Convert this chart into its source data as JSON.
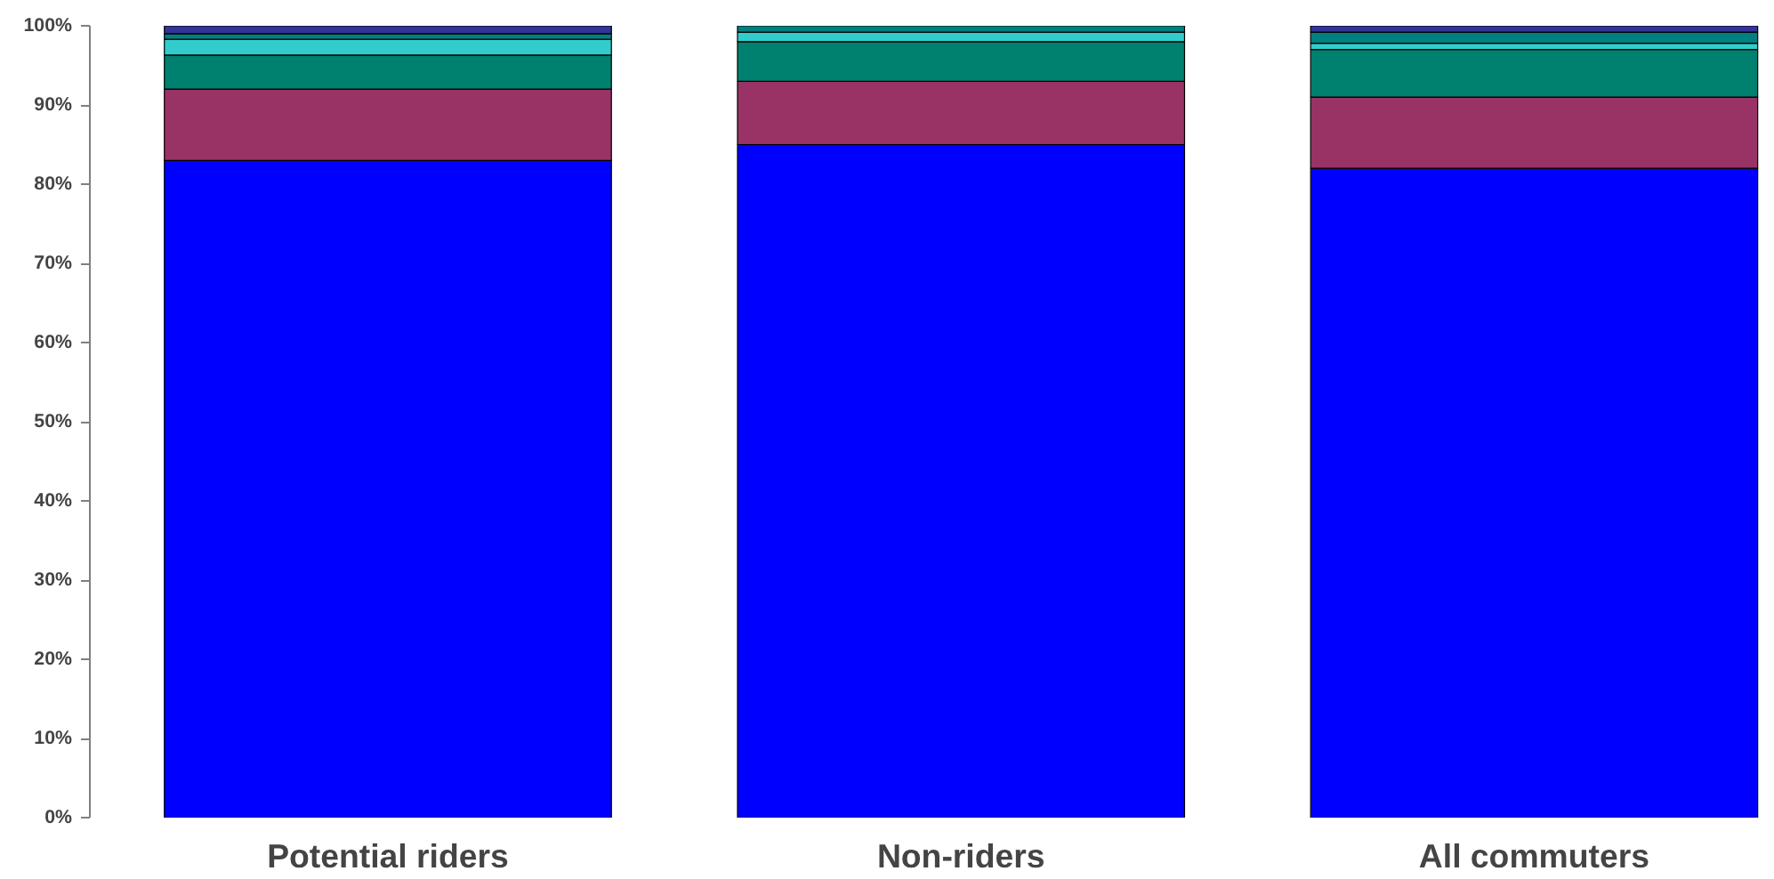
{
  "chart_data": {
    "type": "bar",
    "stacked": true,
    "categories": [
      "Potential riders",
      "Non-riders",
      "All commuters"
    ],
    "series": [
      {
        "color": "#0000ff",
        "values": [
          83,
          85,
          82
        ]
      },
      {
        "color": "#993366",
        "values": [
          9,
          8,
          9
        ]
      },
      {
        "color": "#00806e",
        "values": [
          4.3,
          5,
          6
        ]
      },
      {
        "color": "#33cccc",
        "values": [
          2,
          1.2,
          0.8
        ]
      },
      {
        "color": "#008080",
        "values": [
          0.7,
          0.8,
          1.4
        ]
      },
      {
        "color": "#333399",
        "values": [
          1,
          0,
          0.8
        ]
      }
    ],
    "ylim": [
      0,
      100
    ],
    "yticks": [
      {
        "value": 0,
        "label": "0%"
      },
      {
        "value": 10,
        "label": "10%"
      },
      {
        "value": 20,
        "label": "20%"
      },
      {
        "value": 30,
        "label": "30%"
      },
      {
        "value": 40,
        "label": "40%"
      },
      {
        "value": 50,
        "label": "50%"
      },
      {
        "value": 60,
        "label": "60%"
      },
      {
        "value": 70,
        "label": "70%"
      },
      {
        "value": 80,
        "label": "80%"
      },
      {
        "value": 90,
        "label": "90%"
      },
      {
        "value": 100,
        "label": "100%"
      }
    ],
    "grid": false
  }
}
